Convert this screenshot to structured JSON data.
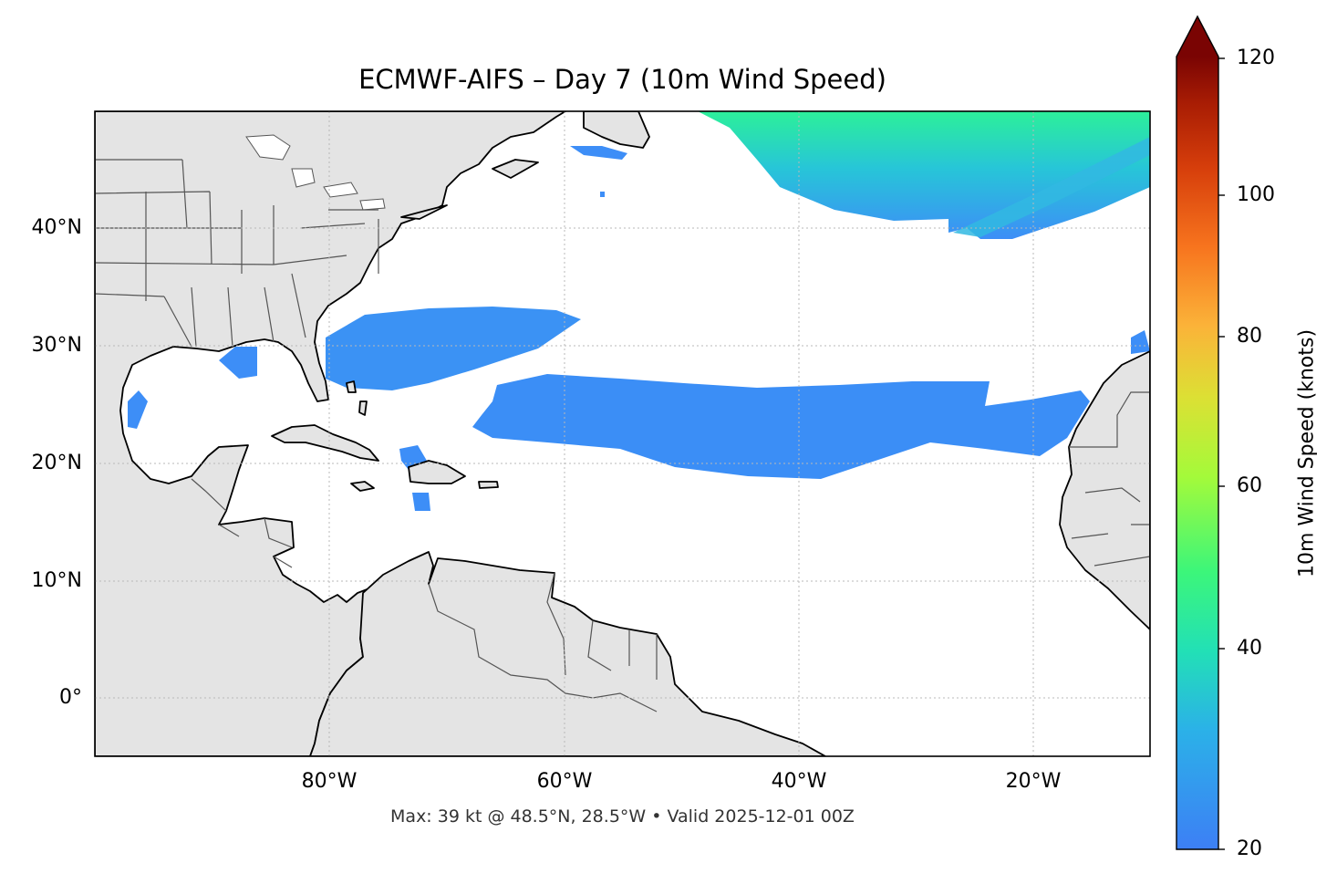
{
  "title": "ECMWF-AIFS – Day 7 (10m Wind Speed)",
  "footer": "Max: 39 kt @ 48.5°N, 28.5°W • Valid 2025-12-01 00Z",
  "axes": {
    "lat_ticks": [
      "40°N",
      "30°N",
      "20°N",
      "10°N",
      "0°"
    ],
    "lon_ticks": [
      "80°W",
      "60°W",
      "40°W",
      "20°W"
    ]
  },
  "colorbar": {
    "label": "10m Wind Speed (knots)",
    "ticks": [
      "20",
      "40",
      "60",
      "80",
      "100",
      "120"
    ],
    "extend": "max",
    "colormap": "turbo"
  },
  "colors": {
    "land": "#e4e4e4",
    "ocean": "#ffffff",
    "wind_low": "#3d8ef7",
    "wind_mid": "#27c5d8",
    "wind_high": "#2cf09a",
    "coast": "#000000",
    "borders": "#555555"
  },
  "chart_data": {
    "type": "map",
    "extent": {
      "lon_min": -100,
      "lon_max": -10,
      "lat_min": -5,
      "lat_max": 50
    },
    "grid": "dotted",
    "colorbar_range": [
      20,
      120
    ],
    "max_point": {
      "value_kt": 39,
      "lat": 48.5,
      "lon": -28.5
    }
  }
}
